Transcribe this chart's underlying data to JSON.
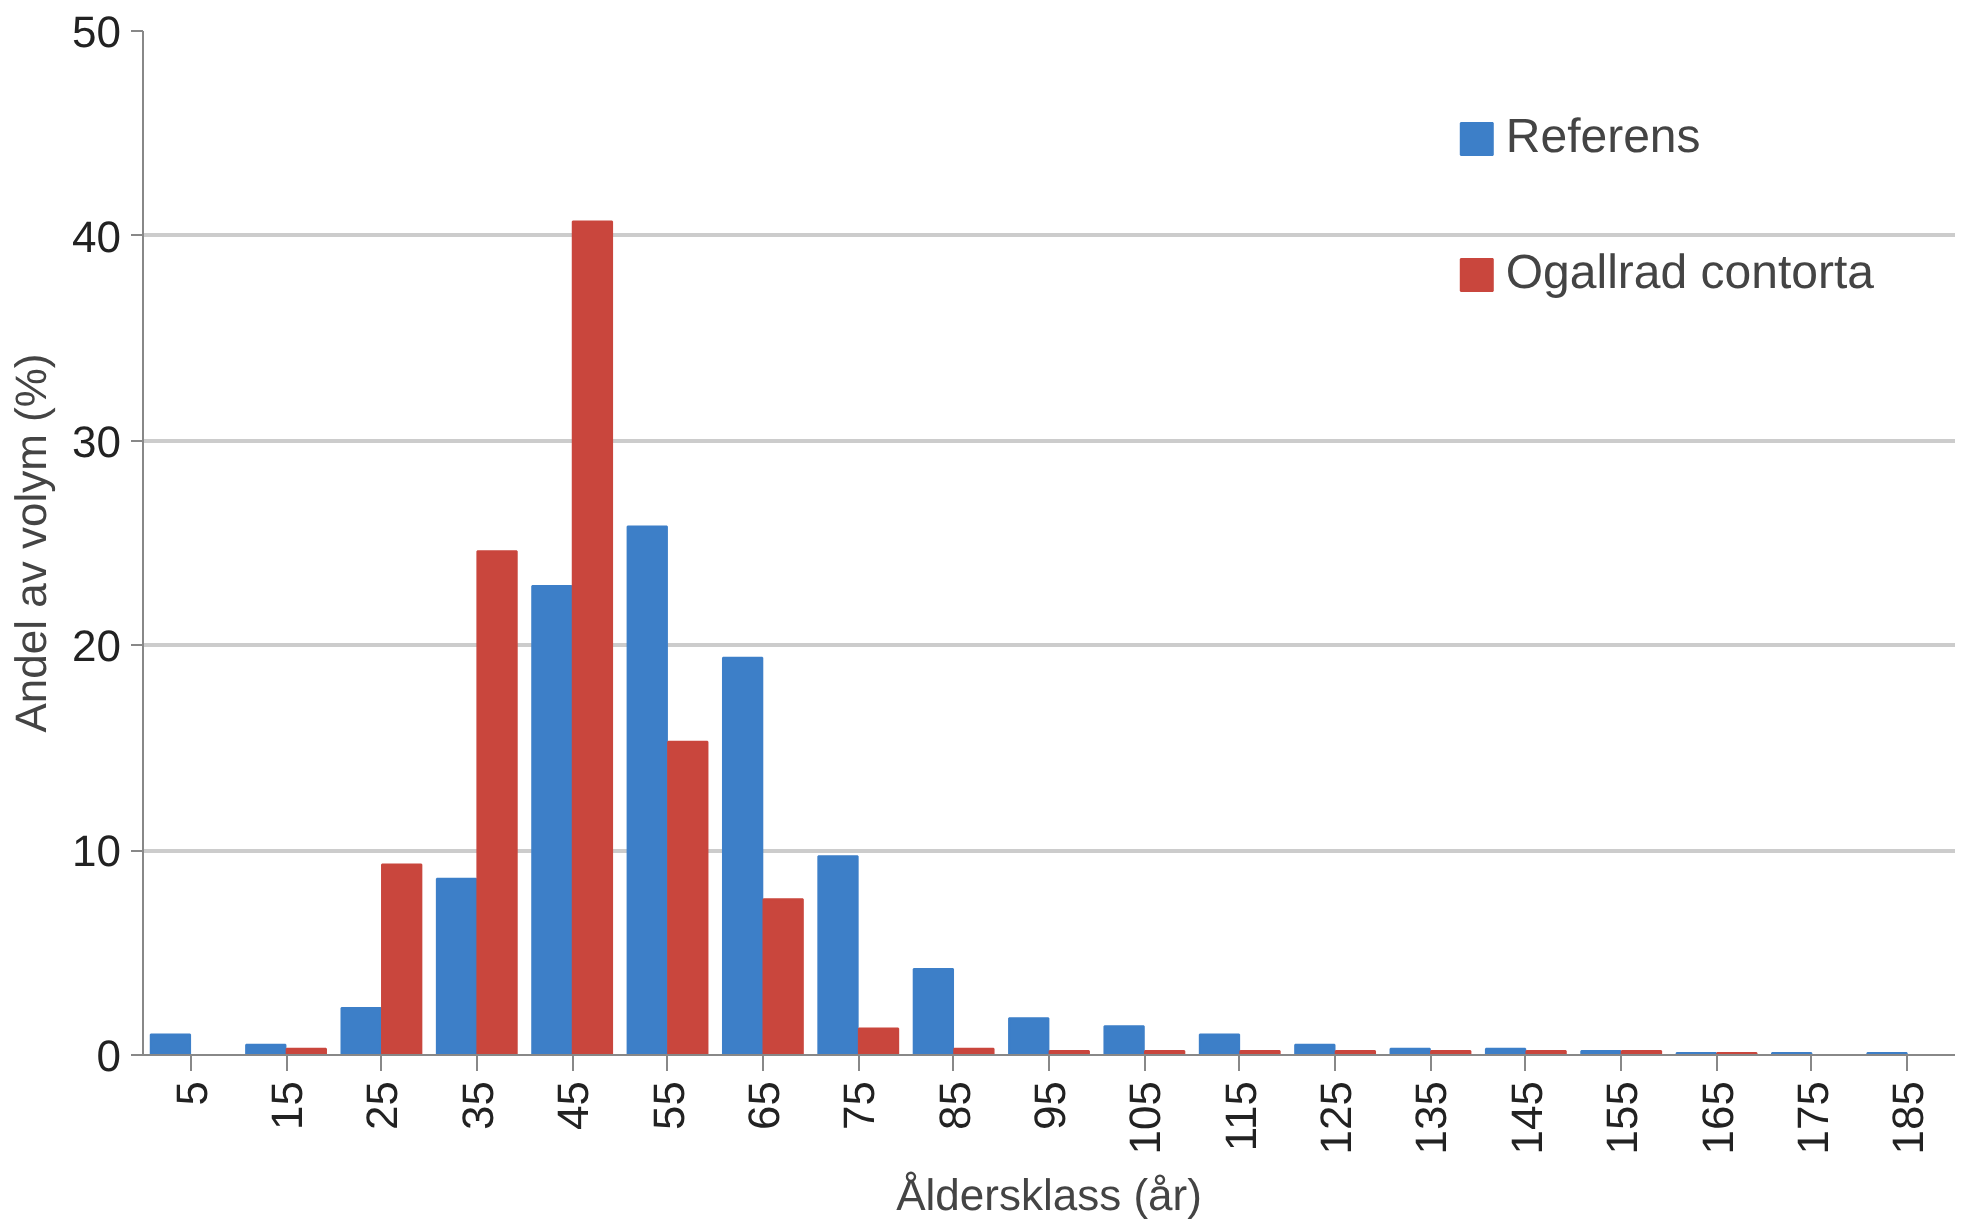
{
  "chart_data": {
    "type": "bar",
    "xlabel": "Åldersklass (år)",
    "ylabel": "Andel av volym (%)",
    "categories": [
      "5",
      "15",
      "25",
      "35",
      "45",
      "55",
      "65",
      "75",
      "85",
      "95",
      "105",
      "115",
      "125",
      "135",
      "145",
      "155",
      "165",
      "175",
      "185"
    ],
    "series": [
      {
        "name": "Referens",
        "color": "#3d7fc8",
        "values": [
          1.0,
          0.5,
          2.3,
          8.6,
          22.9,
          25.8,
          19.4,
          9.7,
          4.2,
          1.8,
          1.4,
          1.0,
          0.5,
          0.3,
          0.3,
          0.2,
          0.1,
          0.1,
          0.1
        ]
      },
      {
        "name": "Ogallrad contorta",
        "color": "#c9463d",
        "values": [
          0,
          0.3,
          9.3,
          24.6,
          40.7,
          15.3,
          7.6,
          1.3,
          0.3,
          0.2,
          0.2,
          0.2,
          0.2,
          0.2,
          0.2,
          0.2,
          0.1,
          0,
          0
        ]
      }
    ],
    "ylim": [
      0,
      50
    ],
    "yticks": [
      0,
      10,
      20,
      30,
      40,
      50
    ],
    "grid": "y",
    "legend": "top right"
  }
}
